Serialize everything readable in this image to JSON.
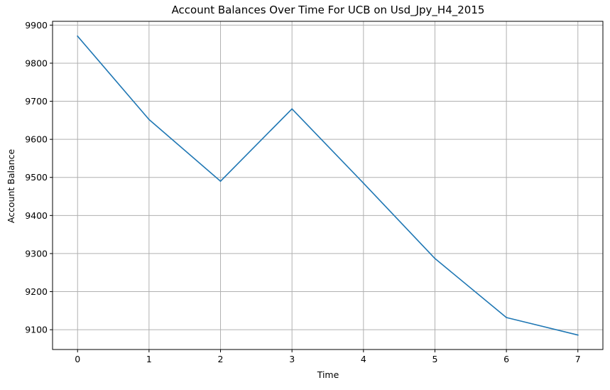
{
  "chart_data": {
    "type": "line",
    "title": "Account Balances Over Time For UCB on Usd_Jpy_H4_2015",
    "xlabel": "Time",
    "ylabel": "Account Balance",
    "x": [
      0,
      1,
      2,
      3,
      4,
      5,
      6,
      7
    ],
    "xticks": [
      "0",
      "1",
      "2",
      "3",
      "4",
      "5",
      "6",
      "7"
    ],
    "yticks": [
      "9100",
      "9200",
      "9300",
      "9400",
      "9500",
      "9600",
      "9700",
      "9800",
      "9900"
    ],
    "xlim": [
      -0.35,
      7.35
    ],
    "ylim": [
      9048,
      9910
    ],
    "grid": true,
    "legend": "none",
    "series": [
      {
        "color": "#1f77b4",
        "values": [
          9871,
          9652,
          9490,
          9680,
          9485,
          9287,
          9132,
          9086
        ]
      }
    ]
  }
}
